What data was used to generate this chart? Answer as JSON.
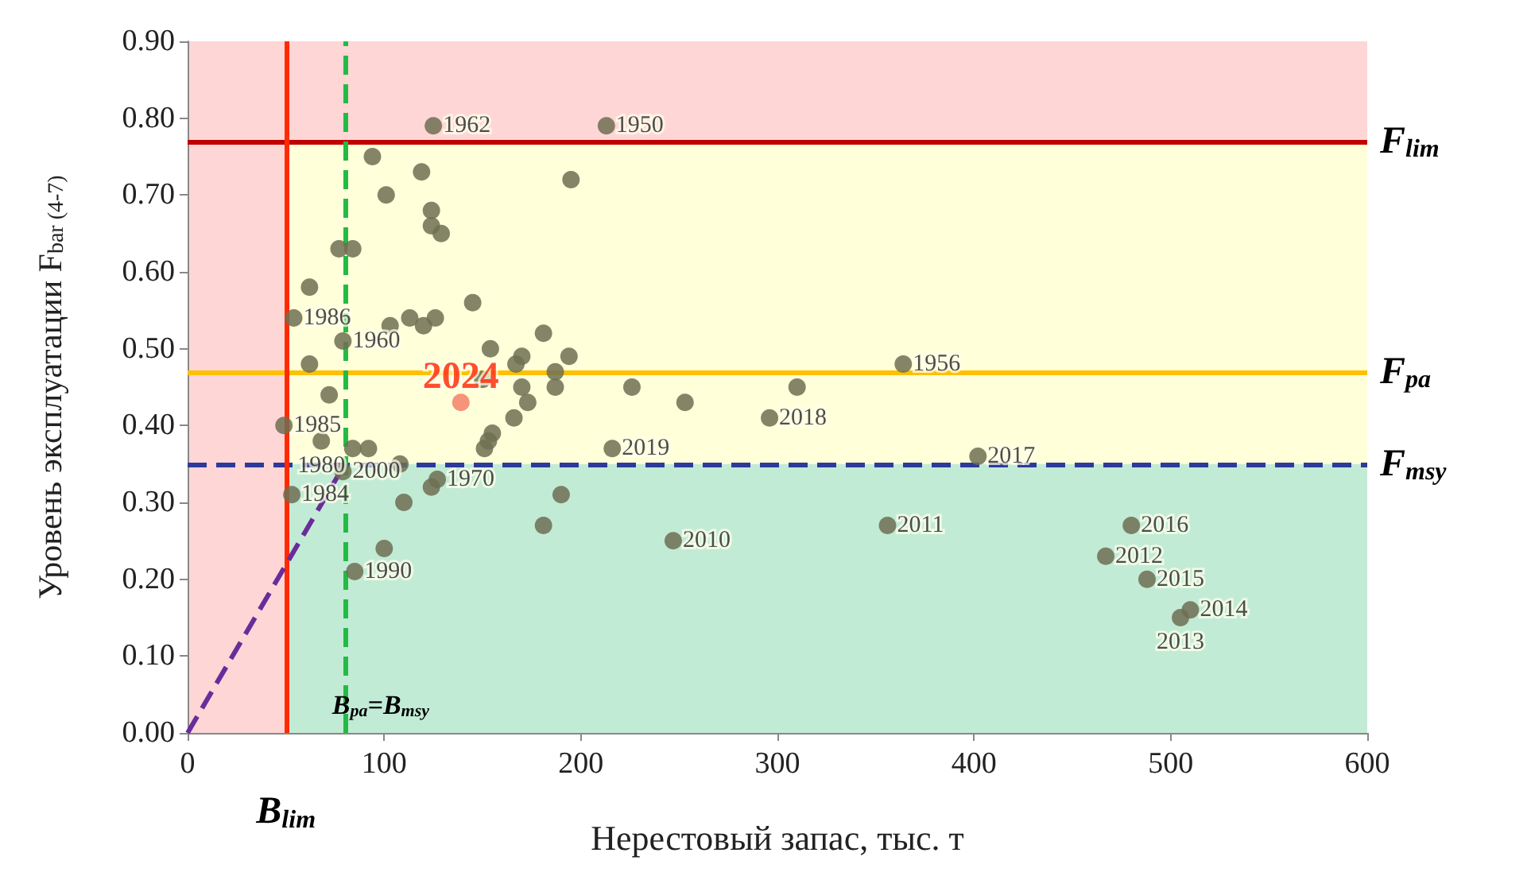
{
  "chart_data": {
    "type": "scatter",
    "xlabel": "Нерестовый запас, тыс. т",
    "ylabel": "Уровень эксплуатации F$_{bar (4-7)}$",
    "xlim": [
      0,
      600
    ],
    "xticks": [
      0,
      100,
      200,
      300,
      400,
      500,
      600
    ],
    "ylim": [
      0,
      0.9
    ],
    "yticks": [
      {
        "value": 0,
        "label": "0.00"
      },
      {
        "value": 0.1,
        "label": "0.10"
      },
      {
        "value": 0.2,
        "label": "0.20"
      },
      {
        "value": 0.3,
        "label": "0.30"
      },
      {
        "value": 0.4,
        "label": "0.40"
      },
      {
        "value": 0.5,
        "label": "0.50"
      },
      {
        "value": 0.6,
        "label": "0.60"
      },
      {
        "value": 0.7,
        "label": "0.70"
      },
      {
        "value": 0.8,
        "label": "0.80"
      },
      {
        "value": 0.9,
        "label": "0.90"
      }
    ],
    "grid": false,
    "marker": "circle",
    "series": [
      {
        "color": "#6e6e52",
        "x": [
          125,
          213,
          94,
          119,
          195,
          101,
          124,
          124,
          129,
          77,
          84,
          62,
          54,
          79,
          62,
          103,
          113,
          120,
          126,
          145,
          154,
          181,
          194,
          170,
          167,
          226,
          150,
          170,
          173,
          187,
          187,
          49,
          72,
          68,
          84,
          92,
          108,
          53,
          79,
          110,
          100,
          85,
          124,
          127,
          155,
          153,
          151,
          166,
          181,
          190,
          216,
          253,
          310,
          364,
          296,
          402,
          247,
          356,
          480,
          467,
          488,
          510,
          505
        ],
        "values": [
          0.79,
          0.79,
          0.75,
          0.73,
          0.72,
          0.7,
          0.68,
          0.66,
          0.65,
          0.63,
          0.63,
          0.58,
          0.54,
          0.51,
          0.48,
          0.53,
          0.54,
          0.53,
          0.54,
          0.56,
          0.5,
          0.52,
          0.49,
          0.49,
          0.48,
          0.45,
          0.46,
          0.45,
          0.43,
          0.45,
          0.47,
          0.4,
          0.44,
          0.38,
          0.37,
          0.37,
          0.35,
          0.31,
          0.34,
          0.3,
          0.24,
          0.21,
          0.32,
          0.33,
          0.39,
          0.38,
          0.37,
          0.41,
          0.27,
          0.31,
          0.37,
          0.43,
          0.45,
          0.48,
          0.41,
          0.36,
          0.25,
          0.27,
          0.27,
          0.23,
          0.2,
          0.16,
          0.15
        ]
      },
      {
        "color": "#f4806a",
        "x": [
          139
        ],
        "values": [
          0.43
        ]
      },
      {
        "type": "line",
        "color": "#6a2c9a",
        "line_style": "dashed",
        "marker": "none",
        "x": [
          0,
          80
        ],
        "values": [
          0,
          0.35
        ]
      }
    ],
    "bands": [
      {
        "axis": "y",
        "from": 0.77,
        "to": 0.9,
        "color": "#ffd6d6"
      },
      {
        "axis": "y",
        "from": 0.35,
        "to": 0.77,
        "color": "#ffffda"
      },
      {
        "axis": "y",
        "from": 0,
        "to": 0.35,
        "color": "#c2ebd6"
      },
      {
        "axis": "x",
        "from": 0,
        "to": 50,
        "color": "#ffd6d6"
      }
    ],
    "ref_lines": [
      {
        "axis": "y",
        "value": 0.77,
        "label": "F$_{lim}$",
        "color": "#c00000",
        "line_style": "solid"
      },
      {
        "axis": "y",
        "value": 0.47,
        "label": "F$_{pa}$",
        "color": "#ffc000",
        "line_style": "solid"
      },
      {
        "axis": "y",
        "value": 0.35,
        "label": "F$_{msy}$",
        "color": "#2e3a9a",
        "line_style": "dashed"
      },
      {
        "axis": "x",
        "value": 50,
        "label": "B$_{lim}$",
        "color": "#ff2a00",
        "line_style": "solid"
      },
      {
        "axis": "x",
        "value": 80,
        "label": "B$_{pa}$=B$_{msy}$",
        "color": "#22bb44",
        "line_style": "dashed"
      }
    ],
    "annotations": [
      {
        "text": "2024",
        "x": 139,
        "y": 0.43
      },
      {
        "text": "1962",
        "x": 125,
        "y": 0.79
      },
      {
        "text": "1950",
        "x": 213,
        "y": 0.79
      },
      {
        "text": "1986",
        "x": 54,
        "y": 0.54
      },
      {
        "text": "1960",
        "x": 79,
        "y": 0.51
      },
      {
        "text": "1985",
        "x": 49,
        "y": 0.4
      },
      {
        "text": "1980",
        "x": 68,
        "y": 0.38
      },
      {
        "text": "1984",
        "x": 53,
        "y": 0.31
      },
      {
        "text": "2000",
        "x": 79,
        "y": 0.34
      },
      {
        "text": "1990",
        "x": 85,
        "y": 0.21
      },
      {
        "text": "1970",
        "x": 127,
        "y": 0.33
      },
      {
        "text": "2019",
        "x": 216,
        "y": 0.37
      },
      {
        "text": "2018",
        "x": 296,
        "y": 0.41
      },
      {
        "text": "1956",
        "x": 364,
        "y": 0.48
      },
      {
        "text": "2017",
        "x": 402,
        "y": 0.36
      },
      {
        "text": "2010",
        "x": 247,
        "y": 0.25
      },
      {
        "text": "2011",
        "x": 356,
        "y": 0.27
      },
      {
        "text": "2016",
        "x": 480,
        "y": 0.27
      },
      {
        "text": "2012",
        "x": 467,
        "y": 0.23
      },
      {
        "text": "2015",
        "x": 488,
        "y": 0.2
      },
      {
        "text": "2014",
        "x": 510,
        "y": 0.16
      },
      {
        "text": "2013",
        "x": 505,
        "y": 0.15
      }
    ]
  }
}
